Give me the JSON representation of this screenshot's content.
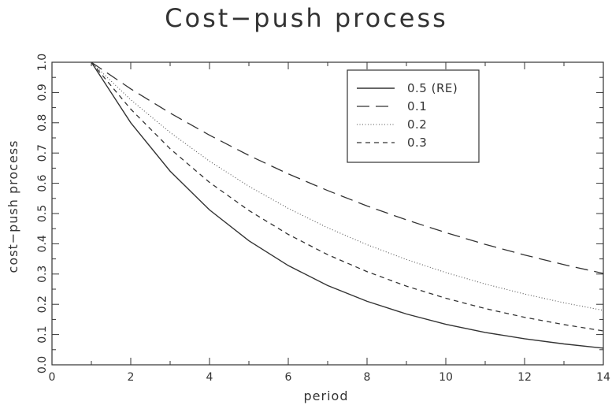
{
  "chart_data": {
    "type": "line",
    "title": "Cost−push process",
    "xlabel": "period",
    "ylabel": "cost−push process",
    "xlim": [
      0,
      14
    ],
    "ylim": [
      0.0,
      1.0
    ],
    "xticks": [
      0,
      2,
      4,
      6,
      8,
      10,
      12,
      14
    ],
    "yticks": [
      "0.0",
      "0.1",
      "0.2",
      "0.3",
      "0.4",
      "0.5",
      "0.6",
      "0.7",
      "0.8",
      "0.9",
      "1.0"
    ],
    "grid": false,
    "legend_position": "top-right",
    "x": [
      1,
      2,
      3,
      4,
      5,
      6,
      7,
      8,
      9,
      10,
      11,
      12,
      13,
      14
    ],
    "series": [
      {
        "name": "0.5 (RE)",
        "dash": "solid",
        "values": [
          1.0,
          0.8,
          0.64,
          0.512,
          0.41,
          0.328,
          0.262,
          0.21,
          0.168,
          0.134,
          0.107,
          0.086,
          0.069,
          0.055
        ]
      },
      {
        "name": "0.1",
        "dash": "long-dash",
        "values": [
          1.0,
          0.912,
          0.832,
          0.759,
          0.692,
          0.631,
          0.576,
          0.525,
          0.479,
          0.437,
          0.398,
          0.363,
          0.331,
          0.302
        ]
      },
      {
        "name": "0.2",
        "dash": "dotted",
        "values": [
          1.0,
          0.876,
          0.768,
          0.673,
          0.59,
          0.517,
          0.453,
          0.397,
          0.348,
          0.305,
          0.267,
          0.234,
          0.205,
          0.18
        ]
      },
      {
        "name": "0.3",
        "dash": "short-dash",
        "values": [
          1.0,
          0.845,
          0.714,
          0.603,
          0.51,
          0.431,
          0.364,
          0.308,
          0.26,
          0.22,
          0.186,
          0.157,
          0.133,
          0.112
        ]
      }
    ]
  }
}
